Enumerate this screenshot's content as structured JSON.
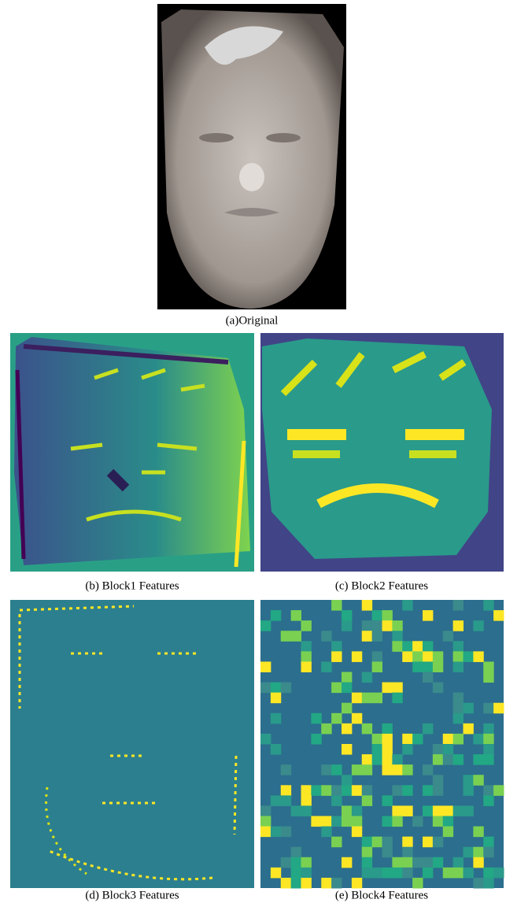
{
  "figure": {
    "panels": [
      {
        "caption": "(a)Original"
      },
      {
        "caption": "(b) Block1 Features"
      },
      {
        "caption": "(c) Block2 Features"
      },
      {
        "caption": "(d) Block3 Features"
      },
      {
        "caption": "(e) Block4 Features"
      }
    ]
  }
}
